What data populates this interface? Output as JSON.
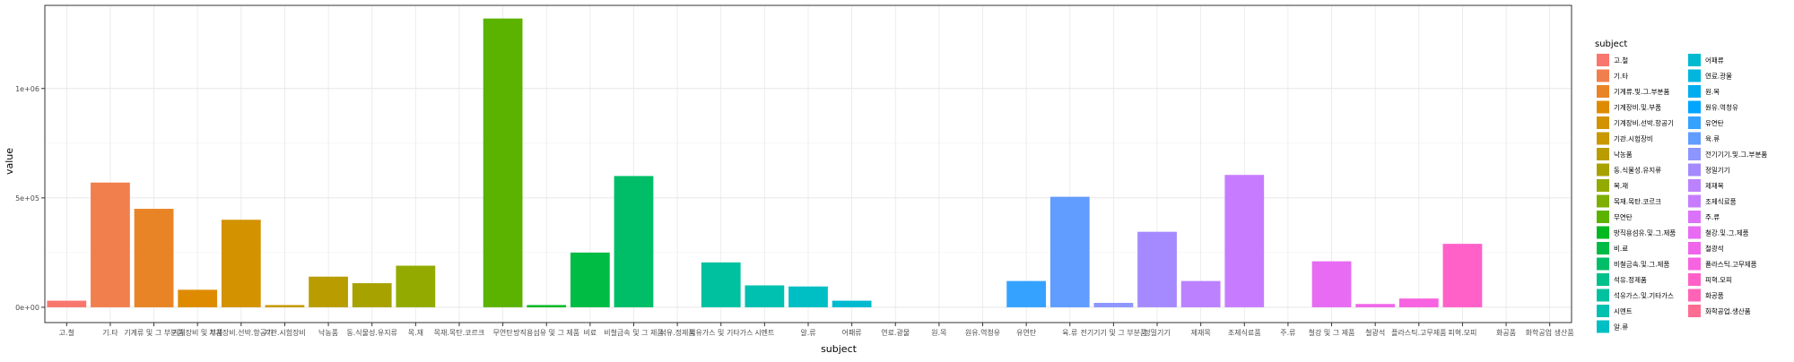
{
  "chart_data": {
    "type": "bar",
    "xlabel": "subject",
    "ylabel": "value",
    "legend_title": "subject",
    "legend_position": "right",
    "grid": true,
    "ylim": [
      -70000,
      1380000
    ],
    "y_ticks": [
      0,
      500000,
      1000000
    ],
    "y_tick_labels": [
      "0e+00",
      "5e+05",
      "1e+06"
    ],
    "categories": [
      "고.철",
      "기.타",
      "기계류 및 그 부분품",
      "기계장비 및 부품",
      "기계장비.선박.항공기",
      "기관.시험장비",
      "낙농품",
      "동.식물성.유지류",
      "목.재",
      "목재.목탄.코르크",
      "무연탄",
      "방직용섬유 및 그 제품",
      "비료",
      "비철금속 및 그 제품",
      "석유.정제품",
      "석유가스 및 기타가스",
      "시멘트",
      "알.류",
      "어패류",
      "연료.광물",
      "원.목",
      "원유.역청유",
      "유연탄",
      "육.류",
      "전기기기 및 그 부분품",
      "정밀기기",
      "제재목",
      "조제식료품",
      "주.류",
      "철강 및 그 제품",
      "철광석",
      "플라스틱.고무제품",
      "피혁.모피",
      "화공품",
      "화학공업 생산품"
    ],
    "values": [
      30000,
      570000,
      450000,
      80000,
      400000,
      10000,
      140000,
      110000,
      190000,
      0,
      1320000,
      10000,
      250000,
      600000,
      0,
      205000,
      100000,
      95000,
      30000,
      0,
      0,
      0,
      120000,
      505000,
      20000,
      345000,
      120000,
      605000,
      0,
      210000,
      15000,
      40000,
      290000,
      0,
      0
    ],
    "legend_entries": [
      "고.철",
      "기.타",
      "기계류.및.그.부분품",
      "기계장비.및.부품",
      "기계장비.선박.항공기",
      "기관.시험장비",
      "낙농품",
      "동.식물성.유지류",
      "목.재",
      "목재.목탄.코르크",
      "무연탄",
      "방직용섬유.및.그.제품",
      "비.료",
      "비철금속.및.그.제품",
      "석유.정제품",
      "석유가스.및.기타가스",
      "시멘트",
      "알.류",
      "어패류",
      "연료.광물",
      "원.목",
      "원유.역청유",
      "유연탄",
      "육.류",
      "전기기기.및.그.부분품",
      "정밀기기",
      "제재목",
      "조제식료품",
      "주.류",
      "철강.및.그.제품",
      "철광석",
      "플라스틱.고무제품",
      "피혁.모피",
      "화공품",
      "화학공업.생산품"
    ],
    "colors": [
      "#F8766D",
      "#F17F4D",
      "#E88425",
      "#DF8B02",
      "#D39200",
      "#C99800",
      "#B99D00",
      "#A8A200",
      "#93AA00",
      "#7DAE00",
      "#5BB300",
      "#00B81F",
      "#00BC44",
      "#00BE67",
      "#00C08B",
      "#00C19F",
      "#00C0AF",
      "#00BFC4",
      "#00BAD0",
      "#00B5DE",
      "#00ADEF",
      "#00A5FF",
      "#35A2FF",
      "#619CFF",
      "#8D95FF",
      "#A58AFF",
      "#BB81FF",
      "#C77CFF",
      "#DB72FB",
      "#E76BF3",
      "#F066EA",
      "#F763E0",
      "#FF61C9",
      "#FF63B6",
      "#FF6C91"
    ]
  }
}
